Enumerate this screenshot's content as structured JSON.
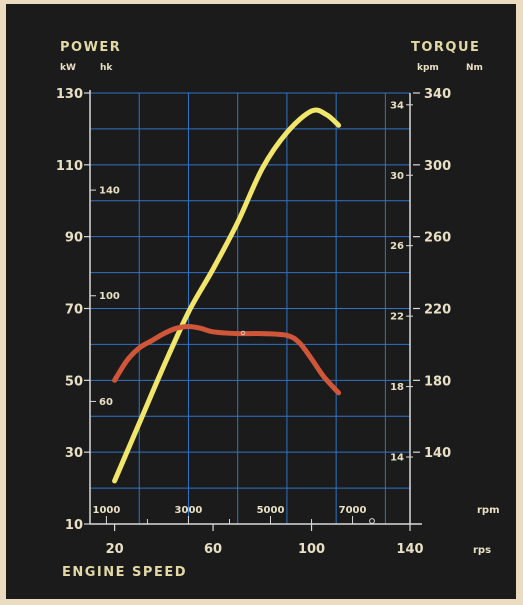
{
  "chart_data": {
    "type": "line",
    "title_left": "POWER",
    "unit_left_kw": "kW",
    "unit_left_hk": "hk",
    "title_right": "TORQUE",
    "unit_right_kpm": "kpm",
    "unit_right_nm": "Nm",
    "xlabel": "ENGINE SPEED",
    "x_unit_rps": "rps",
    "x_unit_rpm": "rpm",
    "x_rps_ticks": [
      "20",
      "60",
      "100",
      "140"
    ],
    "x_rpm_ticks": [
      "1000",
      "3000",
      "5000",
      "7000"
    ],
    "kw_ticks": [
      "10",
      "30",
      "50",
      "70",
      "90",
      "110",
      "130"
    ],
    "hk_ticks": [
      "60",
      "100",
      "140"
    ],
    "nm_ticks": [
      "140",
      "180",
      "220",
      "260",
      "300",
      "340"
    ],
    "kpm_ticks": [
      "14",
      "18",
      "22",
      "26",
      "30",
      "34"
    ],
    "xlim_rps": [
      10,
      140
    ],
    "ylim_kw": [
      10,
      130
    ],
    "ylim_nm": [
      100,
      340
    ],
    "grid": true,
    "series": [
      {
        "name": "",
        "axis": "kW",
        "color": "#f1e66a",
        "x": [
          20,
          30,
          40,
          50,
          60,
          70,
          80,
          90,
          100,
          106,
          111
        ],
        "y": [
          22,
          38,
          54,
          69,
          81,
          94,
          109,
          119,
          125,
          124,
          121
        ]
      },
      {
        "name": "",
        "axis": "Nm",
        "color": "#d0563a",
        "x": [
          20,
          25,
          30,
          35,
          40,
          45,
          50,
          55,
          60,
          70,
          80,
          90,
          95,
          100,
          105,
          111
        ],
        "y": [
          180,
          191,
          198,
          202,
          206,
          209,
          210,
          209,
          207,
          206,
          206,
          205,
          201,
          192,
          182,
          173
        ]
      }
    ]
  }
}
